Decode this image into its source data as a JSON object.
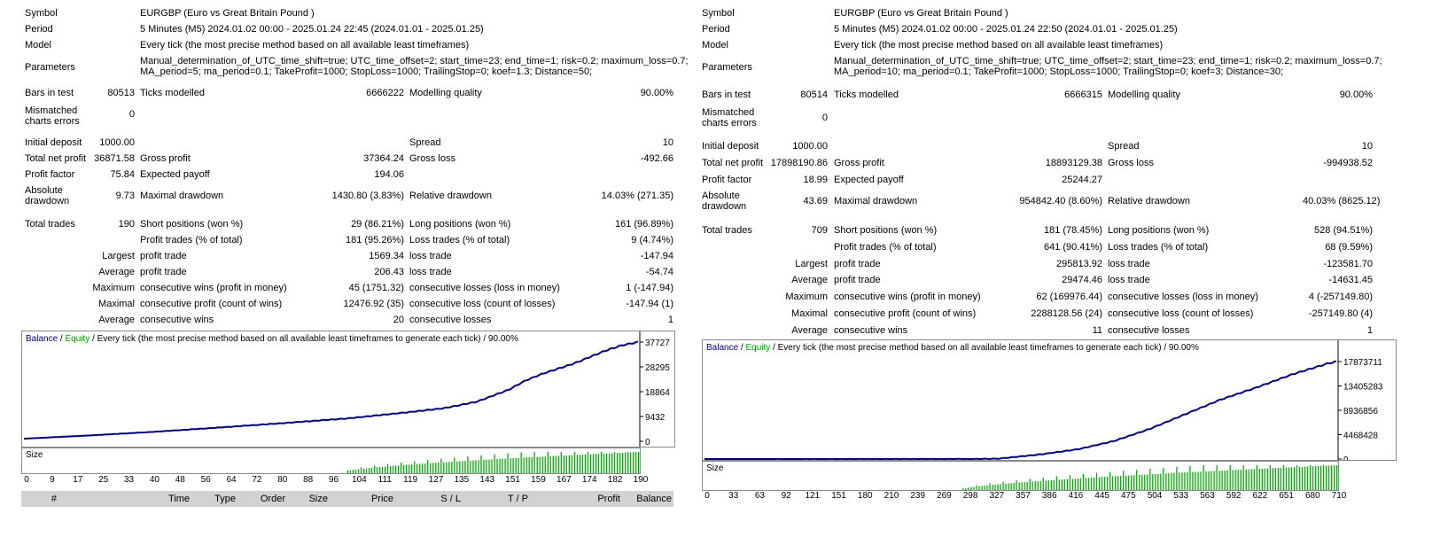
{
  "left": {
    "symbol_label": "Symbol",
    "symbol": "EURGBP (Euro vs Great Britain Pound )",
    "period_label": "Period",
    "period": "5 Minutes (M5) 2024.01.02 00:00 - 2025.01.24 22:45 (2024.01.01 - 2025.01.25)",
    "model_label": "Model",
    "model": "Every tick (the most precise method based on all available least timeframes)",
    "parameters_label": "Parameters",
    "parameters_line1": "Manual_determination_of_UTC_time_shift=true; UTC_time_offset=2; start_time=23; end_time=1; risk=0.2; maximum_loss=0.7;",
    "parameters_line2": "MA_period=5; ma_period=0.1; TakeProfit=1000; StopLoss=1000; TrailingStop=0; koef=1.3; Distance=50;",
    "bars_label": "Bars in test",
    "bars": "80513",
    "ticks_label": "Ticks modelled",
    "ticks": "6666222",
    "quality_label": "Modelling quality",
    "quality": "90.00%",
    "mismatched_label": "Mismatched charts errors",
    "mismatched": "0",
    "initial_deposit_label": "Initial deposit",
    "initial_deposit": "1000.00",
    "spread_label": "Spread",
    "spread": "10",
    "net_profit_label": "Total net profit",
    "net_profit": "36871.58",
    "gross_profit_label": "Gross profit",
    "gross_profit": "37364.24",
    "gross_loss_label": "Gross loss",
    "gross_loss": "-492.66",
    "profit_factor_label": "Profit factor",
    "profit_factor": "75.84",
    "expected_payoff_label": "Expected payoff",
    "expected_payoff": "194.06",
    "abs_drawdown_label": "Absolute drawdown",
    "abs_drawdown": "9.73",
    "max_drawdown_label": "Maximal drawdown",
    "max_drawdown": "1430.80 (3.83%)",
    "rel_drawdown_label": "Relative drawdown",
    "rel_drawdown": "14.03% (271.35)",
    "total_trades_label": "Total trades",
    "total_trades": "190",
    "short_label": "Short positions (won %)",
    "short": "29 (86.21%)",
    "long_label": "Long positions (won %)",
    "long": "161 (96.89%)",
    "profit_trades_label": "Profit trades (% of total)",
    "profit_trades": "181 (95.26%)",
    "loss_trades_label": "Loss trades (% of total)",
    "loss_trades": "9 (4.74%)",
    "largest_label": "Largest",
    "largest_profit_label": "profit trade",
    "largest_profit": "1569.34",
    "largest_loss_label": "loss trade",
    "largest_loss": "-147.94",
    "average_label": "Average",
    "average_profit_label": "profit trade",
    "average_profit": "206.43",
    "average_loss_label": "loss trade",
    "average_loss": "-54.74",
    "maximum_label": "Maximum",
    "max_cons_wins_label": "consecutive wins (profit in money)",
    "max_cons_wins": "45 (1751.32)",
    "max_cons_losses_label": "consecutive losses (loss in money)",
    "max_cons_losses": "1 (-147.94)",
    "maximal_label": "Maximal",
    "maximal_cons_profit_label": "consecutive profit (count of wins)",
    "maximal_cons_profit": "12476.92 (35)",
    "maximal_cons_loss_label": "consecutive loss (count of losses)",
    "maximal_cons_loss": "-147.94 (1)",
    "average2_label": "Average",
    "avg_cons_wins_label": "consecutive wins",
    "avg_cons_wins": "20",
    "avg_cons_losses_label": "consecutive losses",
    "avg_cons_losses": "1",
    "legend_balance": "Balance",
    "legend_sep1": " / ",
    "legend_equity": "Equity",
    "legend_rest": " / Every tick (the most precise method based on all available least timeframes to generate each tick) / 90.00%",
    "size_label": "Size",
    "deals_header": [
      "#",
      "Time",
      "Type",
      "Order",
      "Size",
      "Price",
      "S / L",
      "T / P",
      "Profit",
      "Balance"
    ]
  },
  "right": {
    "symbol_label": "Symbol",
    "symbol": "EURGBP (Euro vs Great Britain Pound )",
    "period_label": "Period",
    "period": "5 Minutes (M5) 2024.01.02 00:00 - 2025.01.24 22:50 (2024.01.01 - 2025.01.25)",
    "model_label": "Model",
    "model": "Every tick (the most precise method based on all available least timeframes)",
    "parameters_label": "Parameters",
    "parameters_line1": "Manual_determination_of_UTC_time_shift=true; UTC_time_offset=2; start_time=23; end_time=1; risk=0.2; maximum_loss=0.7;",
    "parameters_line2": "MA_period=10; ma_period=0.1; TakeProfit=1000; StopLoss=1000; TrailingStop=0; koef=3; Distance=30;",
    "bars_label": "Bars in test",
    "bars": "80514",
    "ticks_label": "Ticks modelled",
    "ticks": "6666315",
    "quality_label": "Modelling quality",
    "quality": "90.00%",
    "mismatched_label": "Mismatched charts errors",
    "mismatched": "0",
    "initial_deposit_label": "Initial deposit",
    "initial_deposit": "1000.00",
    "spread_label": "Spread",
    "spread": "10",
    "net_profit_label": "Total net profit",
    "net_profit": "17898190.86",
    "gross_profit_label": "Gross profit",
    "gross_profit": "18893129.38",
    "gross_loss_label": "Gross loss",
    "gross_loss": "-994938.52",
    "profit_factor_label": "Profit factor",
    "profit_factor": "18.99",
    "expected_payoff_label": "Expected payoff",
    "expected_payoff": "25244.27",
    "abs_drawdown_label": "Absolute drawdown",
    "abs_drawdown": "43.69",
    "max_drawdown_label": "Maximal drawdown",
    "max_drawdown": "954842.40 (8.60%)",
    "rel_drawdown_label": "Relative drawdown",
    "rel_drawdown": "40.03% (8625.12)",
    "total_trades_label": "Total trades",
    "total_trades": "709",
    "short_label": "Short positions (won %)",
    "short": "181 (78.45%)",
    "long_label": "Long positions (won %)",
    "long": "528 (94.51%)",
    "profit_trades_label": "Profit trades (% of total)",
    "profit_trades": "641 (90.41%)",
    "loss_trades_label": "Loss trades (% of total)",
    "loss_trades": "68 (9.59%)",
    "largest_label": "Largest",
    "largest_profit_label": "profit trade",
    "largest_profit": "295813.92",
    "largest_loss_label": "loss trade",
    "largest_loss": "-123581.70",
    "average_label": "Average",
    "average_profit_label": "profit trade",
    "average_profit": "29474.46",
    "average_loss_label": "loss trade",
    "average_loss": "-14631.45",
    "maximum_label": "Maximum",
    "max_cons_wins_label": "consecutive wins (profit in money)",
    "max_cons_wins": "62 (169976.44)",
    "max_cons_losses_label": "consecutive losses (loss in money)",
    "max_cons_losses": "4 (-257149.80)",
    "maximal_label": "Maximal",
    "maximal_cons_profit_label": "consecutive profit (count of wins)",
    "maximal_cons_profit": "2288128.56 (24)",
    "maximal_cons_loss_label": "consecutive loss (count of losses)",
    "maximal_cons_loss": "-257149.80 (4)",
    "average2_label": "Average",
    "avg_cons_wins_label": "consecutive wins",
    "avg_cons_wins": "11",
    "avg_cons_losses_label": "consecutive losses",
    "avg_cons_losses": "1",
    "legend_balance": "Balance",
    "legend_sep1": " / ",
    "legend_equity": "Equity",
    "legend_rest": " / Every tick (the most precise method based on all available least timeframes to generate each tick) / 90.00%",
    "size_label": "Size"
  },
  "colors": {
    "balance": "#000080",
    "equity": "#00a000",
    "size_bars": "#00b000",
    "header_bg": "#d2d2d2"
  },
  "chart_data": [
    {
      "type": "line",
      "series": [
        {
          "name": "Balance",
          "x": [
            0,
            20,
            40,
            60,
            80,
            100,
            120,
            130,
            140,
            150,
            155,
            160,
            170,
            180,
            185,
            190
          ],
          "y": [
            1000,
            2200,
            3600,
            5200,
            6900,
            8700,
            11200,
            12600,
            15000,
            19600,
            23000,
            25500,
            29500,
            34500,
            36500,
            37727
          ]
        }
      ],
      "ylim": [
        0,
        37727
      ],
      "yticks": [
        "37727",
        "28295",
        "18864",
        "9432",
        "0"
      ],
      "xticks": [
        "0",
        "9",
        "17",
        "25",
        "33",
        "40",
        "48",
        "56",
        "64",
        "72",
        "80",
        "88",
        "96",
        "104",
        "111",
        "119",
        "127",
        "135",
        "143",
        "151",
        "159",
        "167",
        "174",
        "182",
        "190"
      ],
      "xmax": 190,
      "size_bars": {
        "x_start": 100,
        "x_end": 190,
        "value_min": 0.1,
        "value_max": 1.0
      }
    },
    {
      "type": "line",
      "series": [
        {
          "name": "Balance",
          "x": [
            0,
            100,
            200,
            298,
            330,
            380,
            420,
            460,
            500,
            540,
            580,
            620,
            660,
            700,
            710
          ],
          "y": [
            1000,
            1500,
            3000,
            5000,
            60000,
            900000,
            1800000,
            3300000,
            5500000,
            8200000,
            10900000,
            13100000,
            15500000,
            17500000,
            17873711
          ]
        }
      ],
      "ylim": [
        0,
        17873711
      ],
      "yticks": [
        "17873711",
        "13405283",
        "8936856",
        "4468428",
        "0"
      ],
      "xticks": [
        "0",
        "33",
        "63",
        "92",
        "121",
        "151",
        "180",
        "210",
        "239",
        "269",
        "298",
        "327",
        "357",
        "386",
        "416",
        "445",
        "475",
        "504",
        "533",
        "563",
        "592",
        "622",
        "651",
        "680",
        "710"
      ],
      "xmax": 710,
      "size_bars": {
        "x_start": 290,
        "x_end": 710,
        "value_min": 0.05,
        "value_max": 1.0
      }
    }
  ]
}
